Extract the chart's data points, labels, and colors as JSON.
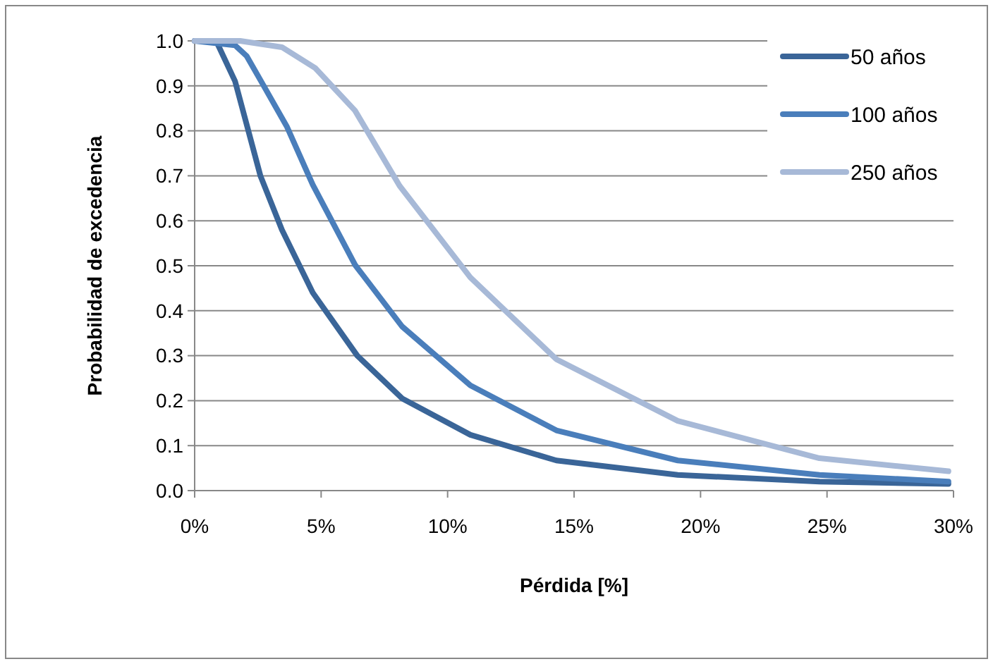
{
  "chart_data": {
    "type": "line",
    "xlabel": "Pérdida [%]",
    "ylabel": "Probabilidad de excedencia",
    "xlim": [
      0,
      30
    ],
    "xticks": [
      {
        "value": 0,
        "label": "0%"
      },
      {
        "value": 5,
        "label": "5%"
      },
      {
        "value": 10,
        "label": "10%"
      },
      {
        "value": 15,
        "label": "15%"
      },
      {
        "value": 20,
        "label": "20%"
      },
      {
        "value": 25,
        "label": "25%"
      },
      {
        "value": 30,
        "label": "30%"
      }
    ],
    "ylim": [
      0,
      1
    ],
    "yticks": [
      {
        "value": 0,
        "label": "0.0"
      },
      {
        "value": 0.1,
        "label": "0.1"
      },
      {
        "value": 0.2,
        "label": "0.2"
      },
      {
        "value": 0.3,
        "label": "0.3"
      },
      {
        "value": 0.4,
        "label": "0.4"
      },
      {
        "value": 0.5,
        "label": "0.5"
      },
      {
        "value": 0.6,
        "label": "0.6"
      },
      {
        "value": 0.7,
        "label": "0.7"
      },
      {
        "value": 0.8,
        "label": "0.8"
      },
      {
        "value": 0.9,
        "label": "0.9"
      },
      {
        "value": 1,
        "label": "1.0"
      }
    ],
    "grid": "y",
    "legend": "top right",
    "marker": "none",
    "line_style": "solid",
    "series": [
      {
        "name": "50 años",
        "color": "#3a6598",
        "x": [
          0,
          0.85,
          1.6,
          2.6,
          3.45,
          4.67,
          6.43,
          8.2,
          10.9,
          14.3,
          19.1,
          24.7,
          29.8
        ],
        "values": [
          1,
          1,
          0.91,
          0.7,
          0.58,
          0.44,
          0.3,
          0.205,
          0.124,
          0.067,
          0.035,
          0.02,
          0.015
        ]
      },
      {
        "name": "100 años",
        "color": "#4a7ebb",
        "x": [
          0,
          1.6,
          2.06,
          2.7,
          3.64,
          4.67,
          6.34,
          8.2,
          10.9,
          14.3,
          19.1,
          24.7,
          29.8
        ],
        "values": [
          1,
          0.99,
          0.966,
          0.903,
          0.81,
          0.68,
          0.502,
          0.365,
          0.234,
          0.134,
          0.067,
          0.035,
          0.02
        ]
      },
      {
        "name": "250 años",
        "color": "#a7b9d7",
        "x": [
          0,
          1.8,
          3.45,
          4.76,
          6.34,
          8.1,
          10.9,
          14.3,
          19.1,
          24.7,
          29.8
        ],
        "values": [
          1,
          1,
          0.986,
          0.94,
          0.845,
          0.678,
          0.474,
          0.292,
          0.155,
          0.072,
          0.043
        ]
      }
    ]
  }
}
